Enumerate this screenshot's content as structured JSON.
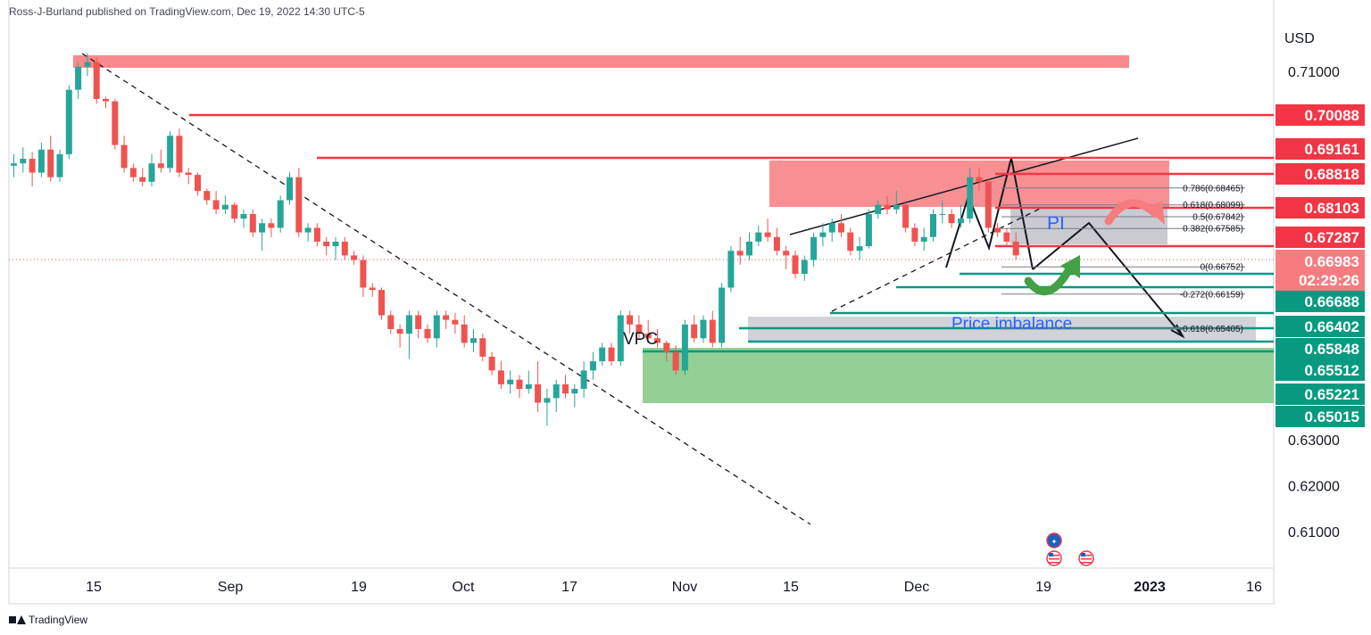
{
  "header": {
    "publisher": "Ross-J-Burland published on TradingView.com, Dec 19, 2022 14:30 UTC-5"
  },
  "footer": {
    "brand": "TradingView"
  },
  "chart_data": {
    "type": "candlestick",
    "currency": "USD",
    "y_ticks": [
      "0.71000",
      "0.63000",
      "0.62000",
      "0.61000"
    ],
    "x_ticks": [
      "15",
      "Sep",
      "19",
      "Oct",
      "17",
      "Nov",
      "15",
      "Dec",
      "19",
      "2023",
      "16"
    ],
    "candles": [
      {
        "o": 0.6895,
        "h": 0.692,
        "l": 0.687,
        "c": 0.69
      },
      {
        "o": 0.69,
        "h": 0.6935,
        "l": 0.688,
        "c": 0.691
      },
      {
        "o": 0.691,
        "h": 0.6925,
        "l": 0.685,
        "c": 0.688
      },
      {
        "o": 0.688,
        "h": 0.6945,
        "l": 0.687,
        "c": 0.693
      },
      {
        "o": 0.693,
        "h": 0.696,
        "l": 0.686,
        "c": 0.687
      },
      {
        "o": 0.687,
        "h": 0.693,
        "l": 0.686,
        "c": 0.692
      },
      {
        "o": 0.692,
        "h": 0.707,
        "l": 0.691,
        "c": 0.706
      },
      {
        "o": 0.706,
        "h": 0.712,
        "l": 0.704,
        "c": 0.711
      },
      {
        "o": 0.711,
        "h": 0.714,
        "l": 0.709,
        "c": 0.712
      },
      {
        "o": 0.712,
        "h": 0.713,
        "l": 0.703,
        "c": 0.704
      },
      {
        "o": 0.704,
        "h": 0.7045,
        "l": 0.702,
        "c": 0.7035
      },
      {
        "o": 0.7035,
        "h": 0.704,
        "l": 0.693,
        "c": 0.694
      },
      {
        "o": 0.694,
        "h": 0.696,
        "l": 0.688,
        "c": 0.689
      },
      {
        "o": 0.689,
        "h": 0.69,
        "l": 0.686,
        "c": 0.687
      },
      {
        "o": 0.687,
        "h": 0.689,
        "l": 0.685,
        "c": 0.686
      },
      {
        "o": 0.686,
        "h": 0.692,
        "l": 0.685,
        "c": 0.69
      },
      {
        "o": 0.69,
        "h": 0.693,
        "l": 0.688,
        "c": 0.689
      },
      {
        "o": 0.689,
        "h": 0.697,
        "l": 0.688,
        "c": 0.696
      },
      {
        "o": 0.696,
        "h": 0.6975,
        "l": 0.687,
        "c": 0.688
      },
      {
        "o": 0.688,
        "h": 0.689,
        "l": 0.6855,
        "c": 0.6875
      },
      {
        "o": 0.6875,
        "h": 0.688,
        "l": 0.683,
        "c": 0.684
      },
      {
        "o": 0.684,
        "h": 0.6845,
        "l": 0.681,
        "c": 0.682
      },
      {
        "o": 0.682,
        "h": 0.684,
        "l": 0.679,
        "c": 0.68
      },
      {
        "o": 0.68,
        "h": 0.683,
        "l": 0.679,
        "c": 0.681
      },
      {
        "o": 0.681,
        "h": 0.6815,
        "l": 0.677,
        "c": 0.678
      },
      {
        "o": 0.678,
        "h": 0.68,
        "l": 0.676,
        "c": 0.679
      },
      {
        "o": 0.679,
        "h": 0.68,
        "l": 0.674,
        "c": 0.675
      },
      {
        "o": 0.675,
        "h": 0.678,
        "l": 0.671,
        "c": 0.677
      },
      {
        "o": 0.677,
        "h": 0.678,
        "l": 0.674,
        "c": 0.676
      },
      {
        "o": 0.676,
        "h": 0.683,
        "l": 0.675,
        "c": 0.682
      },
      {
        "o": 0.682,
        "h": 0.688,
        "l": 0.681,
        "c": 0.687
      },
      {
        "o": 0.687,
        "h": 0.689,
        "l": 0.674,
        "c": 0.675
      },
      {
        "o": 0.675,
        "h": 0.677,
        "l": 0.673,
        "c": 0.676
      },
      {
        "o": 0.676,
        "h": 0.677,
        "l": 0.672,
        "c": 0.673
      },
      {
        "o": 0.673,
        "h": 0.674,
        "l": 0.67,
        "c": 0.672
      },
      {
        "o": 0.672,
        "h": 0.674,
        "l": 0.669,
        "c": 0.673
      },
      {
        "o": 0.673,
        "h": 0.674,
        "l": 0.669,
        "c": 0.67
      },
      {
        "o": 0.67,
        "h": 0.671,
        "l": 0.668,
        "c": 0.669
      },
      {
        "o": 0.669,
        "h": 0.67,
        "l": 0.661,
        "c": 0.663
      },
      {
        "o": 0.663,
        "h": 0.664,
        "l": 0.661,
        "c": 0.6625
      },
      {
        "o": 0.6625,
        "h": 0.663,
        "l": 0.656,
        "c": 0.657
      },
      {
        "o": 0.657,
        "h": 0.658,
        "l": 0.653,
        "c": 0.654
      },
      {
        "o": 0.654,
        "h": 0.655,
        "l": 0.65,
        "c": 0.653
      },
      {
        "o": 0.653,
        "h": 0.658,
        "l": 0.6475,
        "c": 0.657
      },
      {
        "o": 0.657,
        "h": 0.658,
        "l": 0.652,
        "c": 0.654
      },
      {
        "o": 0.654,
        "h": 0.655,
        "l": 0.651,
        "c": 0.652
      },
      {
        "o": 0.652,
        "h": 0.658,
        "l": 0.65,
        "c": 0.657
      },
      {
        "o": 0.657,
        "h": 0.658,
        "l": 0.654,
        "c": 0.656
      },
      {
        "o": 0.656,
        "h": 0.6575,
        "l": 0.653,
        "c": 0.655
      },
      {
        "o": 0.655,
        "h": 0.657,
        "l": 0.65,
        "c": 0.651
      },
      {
        "o": 0.651,
        "h": 0.654,
        "l": 0.649,
        "c": 0.652
      },
      {
        "o": 0.652,
        "h": 0.653,
        "l": 0.647,
        "c": 0.648
      },
      {
        "o": 0.648,
        "h": 0.649,
        "l": 0.644,
        "c": 0.645
      },
      {
        "o": 0.645,
        "h": 0.647,
        "l": 0.641,
        "c": 0.642
      },
      {
        "o": 0.642,
        "h": 0.645,
        "l": 0.64,
        "c": 0.643
      },
      {
        "o": 0.643,
        "h": 0.644,
        "l": 0.639,
        "c": 0.641
      },
      {
        "o": 0.641,
        "h": 0.645,
        "l": 0.64,
        "c": 0.642
      },
      {
        "o": 0.642,
        "h": 0.647,
        "l": 0.636,
        "c": 0.638
      },
      {
        "o": 0.638,
        "h": 0.641,
        "l": 0.633,
        "c": 0.639
      },
      {
        "o": 0.639,
        "h": 0.643,
        "l": 0.636,
        "c": 0.642
      },
      {
        "o": 0.642,
        "h": 0.644,
        "l": 0.639,
        "c": 0.64
      },
      {
        "o": 0.64,
        "h": 0.642,
        "l": 0.637,
        "c": 0.641
      },
      {
        "o": 0.641,
        "h": 0.647,
        "l": 0.639,
        "c": 0.645
      },
      {
        "o": 0.645,
        "h": 0.649,
        "l": 0.643,
        "c": 0.647
      },
      {
        "o": 0.647,
        "h": 0.651,
        "l": 0.646,
        "c": 0.65
      },
      {
        "o": 0.65,
        "h": 0.651,
        "l": 0.646,
        "c": 0.647
      },
      {
        "o": 0.647,
        "h": 0.658,
        "l": 0.646,
        "c": 0.657
      },
      {
        "o": 0.657,
        "h": 0.658,
        "l": 0.653,
        "c": 0.655
      },
      {
        "o": 0.655,
        "h": 0.657,
        "l": 0.652,
        "c": 0.653
      },
      {
        "o": 0.653,
        "h": 0.656,
        "l": 0.651,
        "c": 0.652
      },
      {
        "o": 0.652,
        "h": 0.654,
        "l": 0.65,
        "c": 0.651
      },
      {
        "o": 0.651,
        "h": 0.6515,
        "l": 0.647,
        "c": 0.649
      },
      {
        "o": 0.649,
        "h": 0.6505,
        "l": 0.644,
        "c": 0.645
      },
      {
        "o": 0.645,
        "h": 0.656,
        "l": 0.644,
        "c": 0.655
      },
      {
        "o": 0.655,
        "h": 0.657,
        "l": 0.651,
        "c": 0.652
      },
      {
        "o": 0.652,
        "h": 0.657,
        "l": 0.651,
        "c": 0.656
      },
      {
        "o": 0.656,
        "h": 0.658,
        "l": 0.65,
        "c": 0.651
      },
      {
        "o": 0.651,
        "h": 0.664,
        "l": 0.65,
        "c": 0.663
      },
      {
        "o": 0.663,
        "h": 0.672,
        "l": 0.662,
        "c": 0.671
      },
      {
        "o": 0.671,
        "h": 0.674,
        "l": 0.668,
        "c": 0.67
      },
      {
        "o": 0.67,
        "h": 0.675,
        "l": 0.669,
        "c": 0.673
      },
      {
        "o": 0.673,
        "h": 0.6765,
        "l": 0.672,
        "c": 0.675
      },
      {
        "o": 0.675,
        "h": 0.678,
        "l": 0.673,
        "c": 0.674
      },
      {
        "o": 0.674,
        "h": 0.676,
        "l": 0.67,
        "c": 0.671
      },
      {
        "o": 0.671,
        "h": 0.672,
        "l": 0.667,
        "c": 0.67
      },
      {
        "o": 0.67,
        "h": 0.671,
        "l": 0.665,
        "c": 0.666
      },
      {
        "o": 0.666,
        "h": 0.67,
        "l": 0.6645,
        "c": 0.669
      },
      {
        "o": 0.669,
        "h": 0.675,
        "l": 0.6675,
        "c": 0.674
      },
      {
        "o": 0.674,
        "h": 0.677,
        "l": 0.672,
        "c": 0.675
      },
      {
        "o": 0.675,
        "h": 0.678,
        "l": 0.673,
        "c": 0.677
      },
      {
        "o": 0.677,
        "h": 0.679,
        "l": 0.674,
        "c": 0.675
      },
      {
        "o": 0.675,
        "h": 0.676,
        "l": 0.67,
        "c": 0.671
      },
      {
        "o": 0.671,
        "h": 0.674,
        "l": 0.669,
        "c": 0.672
      },
      {
        "o": 0.672,
        "h": 0.68,
        "l": 0.6715,
        "c": 0.679
      },
      {
        "o": 0.679,
        "h": 0.682,
        "l": 0.678,
        "c": 0.681
      },
      {
        "o": 0.681,
        "h": 0.683,
        "l": 0.679,
        "c": 0.68
      },
      {
        "o": 0.68,
        "h": 0.684,
        "l": 0.679,
        "c": 0.681
      },
      {
        "o": 0.681,
        "h": 0.6815,
        "l": 0.675,
        "c": 0.676
      },
      {
        "o": 0.676,
        "h": 0.677,
        "l": 0.672,
        "c": 0.673
      },
      {
        "o": 0.673,
        "h": 0.676,
        "l": 0.671,
        "c": 0.674
      },
      {
        "o": 0.674,
        "h": 0.68,
        "l": 0.673,
        "c": 0.679
      },
      {
        "o": 0.679,
        "h": 0.682,
        "l": 0.677,
        "c": 0.679
      },
      {
        "o": 0.679,
        "h": 0.68,
        "l": 0.676,
        "c": 0.677
      },
      {
        "o": 0.677,
        "h": 0.681,
        "l": 0.676,
        "c": 0.678
      },
      {
        "o": 0.678,
        "h": 0.689,
        "l": 0.677,
        "c": 0.687
      },
      {
        "o": 0.687,
        "h": 0.689,
        "l": 0.684,
        "c": 0.686
      },
      {
        "o": 0.686,
        "h": 0.6865,
        "l": 0.675,
        "c": 0.676
      },
      {
        "o": 0.676,
        "h": 0.677,
        "l": 0.674,
        "c": 0.675
      },
      {
        "o": 0.675,
        "h": 0.676,
        "l": 0.672,
        "c": 0.673
      },
      {
        "o": 0.673,
        "h": 0.675,
        "l": 0.669,
        "c": 0.67
      }
    ],
    "resistance_levels": [
      {
        "value": 0.70088,
        "label": "0.70088"
      },
      {
        "value": 0.69161,
        "label": "0.69161"
      },
      {
        "value": 0.68818,
        "label": "0.68818"
      },
      {
        "value": 0.68103,
        "label": "0.68103"
      },
      {
        "value": 0.67287,
        "label": "0.67287"
      }
    ],
    "current_price": {
      "label": "0.66983",
      "countdown": "02:29:26"
    },
    "support_levels": [
      {
        "value": 0.66688,
        "label": "0.66688"
      },
      {
        "value": 0.66402,
        "label": "0.66402"
      },
      {
        "value": 0.65848,
        "label": "0.65848"
      },
      {
        "value": 0.65512,
        "label": "0.65512"
      },
      {
        "value": 0.65221,
        "label": "0.65221"
      },
      {
        "value": 0.65015,
        "label": "0.65015"
      }
    ],
    "fib_levels": [
      {
        "value": 0.68465,
        "label": "0.786(0.68465)"
      },
      {
        "value": 0.68099,
        "label": "0.618(0.68099)"
      },
      {
        "value": 0.67842,
        "label": "0.5(0.67842)"
      },
      {
        "value": 0.67585,
        "label": "0.382(0.67585)"
      },
      {
        "value": 0.66752,
        "label": "0(0.66752)"
      },
      {
        "value": 0.66159,
        "label": "-0.272(0.66159)"
      },
      {
        "value": 0.65405,
        "label": "-0.618(0.65405)"
      }
    ],
    "annotations": {
      "vpc": "VPC",
      "pi": "PI",
      "price_imbalance": "Price imbalance"
    },
    "colors": {
      "up": "#26a69a",
      "down": "#ef5350",
      "resistance": "#f23645",
      "support": "#089981",
      "zone_red": "#f77c80",
      "zone_green": "#81c784",
      "zone_grey": "#b2b5be"
    }
  }
}
